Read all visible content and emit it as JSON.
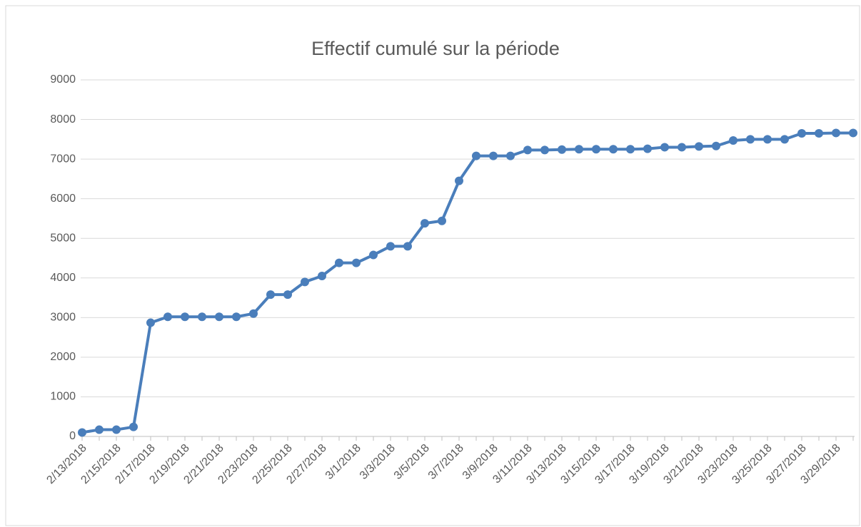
{
  "chart_data": {
    "type": "line",
    "title": "Effectif cumulé sur la période",
    "categories": [
      "2/13/2018",
      null,
      "2/15/2018",
      null,
      "2/17/2018",
      null,
      "2/19/2018",
      null,
      "2/21/2018",
      null,
      "2/23/2018",
      null,
      "2/25/2018",
      null,
      "2/27/2018",
      null,
      "3/1/2018",
      null,
      "3/3/2018",
      null,
      "3/5/2018",
      null,
      "3/7/2018",
      null,
      "3/9/2018",
      null,
      "3/11/2018",
      null,
      "3/13/2018",
      null,
      "3/15/2018",
      null,
      "3/17/2018",
      null,
      "3/19/2018",
      null,
      "3/21/2018",
      null,
      "3/23/2018",
      null,
      "3/25/2018",
      null,
      "3/27/2018",
      null,
      "3/29/2018",
      null
    ],
    "values": [
      100,
      170,
      170,
      240,
      2870,
      3020,
      3020,
      3020,
      3020,
      3020,
      3100,
      3580,
      3580,
      3900,
      4050,
      4380,
      4380,
      4580,
      4800,
      4800,
      5380,
      5440,
      6450,
      7080,
      7080,
      7080,
      7230,
      7230,
      7240,
      7250,
      7250,
      7250,
      7250,
      7260,
      7300,
      7300,
      7320,
      7330,
      7470,
      7500,
      7500,
      7500,
      7650,
      7650,
      7660,
      7660
    ],
    "color": "#4a7ebb",
    "ylim": [
      0,
      9000
    ],
    "yticks": [
      0,
      1000,
      2000,
      3000,
      4000,
      5000,
      6000,
      7000,
      8000,
      9000
    ],
    "grid": true
  }
}
